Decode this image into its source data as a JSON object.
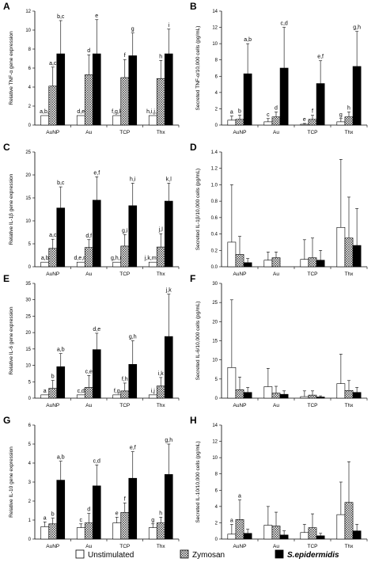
{
  "legend": {
    "items": [
      {
        "label": "Unstimulated",
        "pattern": "open"
      },
      {
        "label": "Zymosan",
        "pattern": "hatch"
      },
      {
        "label": "S.epidermidis",
        "pattern": "solid"
      }
    ]
  },
  "chart_data": [
    {
      "panel": "A",
      "type": "bar",
      "col": 0,
      "row": 0,
      "categories": [
        "AuNP",
        "Au",
        "TCP",
        "Thx"
      ],
      "ylabel": "Relative TNF-α gene expression",
      "ylim": [
        0,
        12
      ],
      "yticks": [
        0,
        2,
        4,
        6,
        8,
        10,
        12
      ],
      "decimals": 0,
      "series": [
        {
          "name": "Unstimulated",
          "values": [
            1,
            1,
            1,
            1
          ],
          "errors": [
            0,
            0,
            0,
            0
          ]
        },
        {
          "name": "Zymosan",
          "values": [
            4.1,
            5.3,
            5.0,
            4.9
          ],
          "errors": [
            2.0,
            2.1,
            1.9,
            1.9
          ]
        },
        {
          "name": "S.epidermidis",
          "values": [
            7.5,
            7.5,
            7.3,
            7.5
          ],
          "errors": [
            3.5,
            3.6,
            2.4,
            2.6
          ]
        }
      ],
      "annotations": [
        [
          "a,b,j",
          "a,c",
          "b,c"
        ],
        [
          "d,e",
          "d",
          "e"
        ],
        [
          "f,g,k",
          "f",
          "g"
        ],
        [
          "h,i,j,k",
          "h",
          "i"
        ]
      ]
    },
    {
      "panel": "B",
      "type": "bar",
      "col": 1,
      "row": 0,
      "categories": [
        "AuNP",
        "Au",
        "TCP",
        "Thx"
      ],
      "ylabel": "Secreted TNF-α/10,000 cells (pg/mL)",
      "ylim": [
        0,
        14
      ],
      "yticks": [
        0,
        2,
        4,
        6,
        8,
        10,
        12,
        14
      ],
      "decimals": 0,
      "series": [
        {
          "name": "Unstimulated",
          "values": [
            0.6,
            0.4,
            0.1,
            0.4
          ],
          "errors": [
            0.5,
            0.4,
            0.1,
            0.4
          ]
        },
        {
          "name": "Zymosan",
          "values": [
            0.7,
            1.0,
            0.7,
            1.0
          ],
          "errors": [
            0.5,
            0.6,
            0.5,
            0.6
          ]
        },
        {
          "name": "S.epidermidis",
          "values": [
            6.3,
            7.0,
            5.1,
            7.2
          ],
          "errors": [
            3.7,
            5.0,
            2.8,
            4.3
          ]
        }
      ],
      "annotations": [
        [
          "a",
          "b",
          "a,b"
        ],
        [
          "c",
          "d",
          "c,d"
        ],
        [
          "e",
          "f",
          "e,f"
        ],
        [
          "g",
          "h",
          "g,h"
        ]
      ]
    },
    {
      "panel": "C",
      "type": "bar",
      "col": 0,
      "row": 1,
      "categories": [
        "AuNP",
        "Au",
        "TCP",
        "Thx"
      ],
      "ylabel": "Relative IL-1β gene expression",
      "ylim": [
        0,
        25
      ],
      "yticks": [
        0,
        5,
        10,
        15,
        20,
        25
      ],
      "decimals": 0,
      "series": [
        {
          "name": "Unstimulated",
          "values": [
            1,
            1,
            1,
            1
          ],
          "errors": [
            0,
            0,
            0,
            0
          ]
        },
        {
          "name": "Zymosan",
          "values": [
            4.0,
            4.2,
            4.5,
            4.3
          ],
          "errors": [
            2.0,
            1.7,
            2.5,
            2.9
          ]
        },
        {
          "name": "S.epidermidis",
          "values": [
            12.8,
            14.5,
            13.3,
            14.3
          ],
          "errors": [
            4.6,
            5.1,
            4.9,
            3.9
          ]
        }
      ],
      "annotations": [
        [
          "a,b",
          "a,c",
          "b,c"
        ],
        [
          "d,e,m",
          "d,f",
          "e,f"
        ],
        [
          "g,h,n",
          "g,i",
          "h,i"
        ],
        [
          "j,k,m,n",
          "j,l",
          "k,l"
        ]
      ]
    },
    {
      "panel": "D",
      "type": "bar",
      "col": 1,
      "row": 1,
      "categories": [
        "AuNP",
        "Au",
        "TCP",
        "Thx"
      ],
      "ylabel": "Secreted IL-1β/10,000 cells (pg/mL)",
      "ylim": [
        0,
        1.4
      ],
      "yticks": [
        0,
        0.2,
        0.4,
        0.6,
        0.8,
        1.0,
        1.2,
        1.4
      ],
      "decimals": 1,
      "series": [
        {
          "name": "Unstimulated",
          "values": [
            0.3,
            0.08,
            0.09,
            0.48
          ],
          "errors": [
            0.7,
            0.1,
            0.24,
            0.83
          ]
        },
        {
          "name": "Zymosan",
          "values": [
            0.15,
            0.11,
            0.11,
            0.35
          ],
          "errors": [
            0.22,
            0.07,
            0.24,
            0.5
          ]
        },
        {
          "name": "S.epidermidis",
          "values": [
            0.05,
            0,
            0.08,
            0.26
          ],
          "errors": [
            0.05,
            0,
            0.12,
            0.45
          ]
        }
      ],
      "annotations": []
    },
    {
      "panel": "E",
      "type": "bar",
      "col": 0,
      "row": 2,
      "categories": [
        "AuNP",
        "Au",
        "TCP",
        "Thx"
      ],
      "ylabel": "Relative IL-6 gene expression",
      "ylim": [
        0,
        35
      ],
      "yticks": [
        0,
        5,
        10,
        15,
        20,
        25,
        30,
        35
      ],
      "decimals": 0,
      "series": [
        {
          "name": "Unstimulated",
          "values": [
            1,
            1,
            1,
            1
          ],
          "errors": [
            0,
            0,
            0,
            0
          ]
        },
        {
          "name": "Zymosan",
          "values": [
            3.0,
            3.3,
            2.2,
            3.7
          ],
          "errors": [
            2.4,
            3.6,
            2.4,
            2.6
          ]
        },
        {
          "name": "S.epidermidis",
          "values": [
            9.6,
            14.8,
            10.3,
            18.8
          ],
          "errors": [
            4.0,
            5.0,
            7.2,
            12.9
          ]
        }
      ],
      "annotations": [
        [
          "a",
          "b",
          "a,b"
        ],
        [
          "c,d",
          "c,e",
          "d,e"
        ],
        [
          "f,g",
          "f,h",
          "g,h"
        ],
        [
          "i,j",
          "i,k",
          "j,k"
        ]
      ]
    },
    {
      "panel": "F",
      "type": "bar",
      "col": 1,
      "row": 2,
      "categories": [
        "AuNP",
        "Au",
        "TCP",
        "Thx"
      ],
      "ylabel": "Secreted IL-6/10,000 cells (pg/mL)",
      "ylim": [
        0,
        30
      ],
      "yticks": [
        0,
        5,
        10,
        15,
        20,
        25,
        30
      ],
      "decimals": 0,
      "series": [
        {
          "name": "Unstimulated",
          "values": [
            8.0,
            3.0,
            0.4,
            3.8
          ],
          "errors": [
            17.7,
            4.8,
            1.5,
            7.7
          ]
        },
        {
          "name": "Zymosan",
          "values": [
            2.2,
            1.3,
            0.8,
            2.0
          ],
          "errors": [
            3.3,
            1.8,
            1.1,
            2.6
          ]
        },
        {
          "name": "S.epidermidis",
          "values": [
            1.5,
            1.0,
            0.3,
            1.5
          ],
          "errors": [
            1.3,
            0.9,
            0.3,
            1.3
          ]
        }
      ],
      "annotations": []
    },
    {
      "panel": "G",
      "type": "bar",
      "col": 0,
      "row": 3,
      "categories": [
        "AuNP",
        "Au",
        "TCP",
        "Thx"
      ],
      "ylabel": "Relative IL-10 gene expression",
      "ylim": [
        0,
        6
      ],
      "yticks": [
        0,
        1,
        2,
        3,
        4,
        5,
        6
      ],
      "decimals": 0,
      "series": [
        {
          "name": "Unstimulated",
          "values": [
            0.65,
            0.6,
            0.85,
            0.6
          ],
          "errors": [
            0.25,
            0.2,
            0.3,
            0.2
          ]
        },
        {
          "name": "Zymosan",
          "values": [
            0.8,
            0.85,
            1.4,
            0.85
          ],
          "errors": [
            0.3,
            0.5,
            0.5,
            0.3
          ]
        },
        {
          "name": "S.epidermidis",
          "values": [
            3.1,
            2.8,
            3.2,
            3.4
          ],
          "errors": [
            1.0,
            1.1,
            1.4,
            1.6
          ]
        }
      ],
      "annotations": [
        [
          "a",
          "b",
          "a,b"
        ],
        [
          "c",
          "d",
          "c,d"
        ],
        [
          "e",
          "f",
          "e,f"
        ],
        [
          "g",
          "h",
          "g,h"
        ]
      ]
    },
    {
      "panel": "H",
      "type": "bar",
      "col": 1,
      "row": 3,
      "categories": [
        "AuNP",
        "Au",
        "TCP",
        "Thx"
      ],
      "ylabel": "Secreted IL-10/10,000 cells (pg/mL)",
      "ylim": [
        0,
        14
      ],
      "yticks": [
        0,
        2,
        4,
        6,
        8,
        10,
        12,
        14
      ],
      "decimals": 0,
      "series": [
        {
          "name": "Unstimulated",
          "values": [
            0.6,
            1.7,
            0.8,
            3.0
          ],
          "errors": [
            1.2,
            2.3,
            1.0,
            4.0
          ]
        },
        {
          "name": "Zymosan",
          "values": [
            2.4,
            1.6,
            1.4,
            4.5
          ],
          "errors": [
            2.4,
            1.7,
            1.7,
            5.0
          ]
        },
        {
          "name": "S.epidermidis",
          "values": [
            0.7,
            0.5,
            0.4,
            1.0
          ],
          "errors": [
            0.5,
            0.5,
            0.3,
            0.8
          ]
        }
      ],
      "annotations": [
        [
          "a",
          "a",
          ""
        ],
        [
          "",
          "",
          ""
        ],
        [
          "",
          "",
          ""
        ],
        [
          "",
          "",
          ""
        ]
      ]
    }
  ]
}
